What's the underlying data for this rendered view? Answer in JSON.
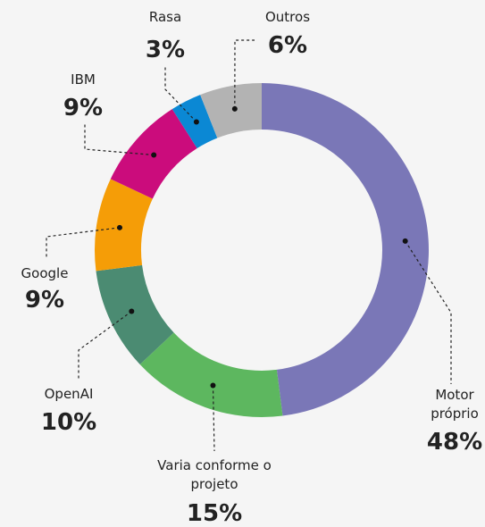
{
  "chart_data": {
    "type": "donut",
    "categories": [
      "Motor próprio",
      "Varia conforme o projeto",
      "OpenAI",
      "Google",
      "IBM",
      "Rasa",
      "Outros"
    ],
    "values": [
      48,
      15,
      10,
      9,
      9,
      3,
      6
    ],
    "value_labels": [
      "48%",
      "15%",
      "10%",
      "9%",
      "9%",
      "3%",
      "6%"
    ],
    "colors": [
      "#7a77b7",
      "#5db75f",
      "#4b8b72",
      "#f59d07",
      "#cb0c7c",
      "#0b88d4",
      "#b3b3b3"
    ]
  }
}
